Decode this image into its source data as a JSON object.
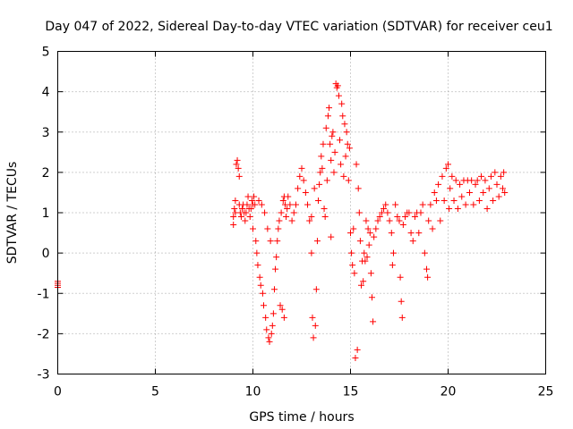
{
  "chart_data": {
    "type": "scatter",
    "title": "Day 047 of 2022, Sidereal Day-to-day VTEC variation (SDTVAR) for receiver ceu1",
    "xlabel": "GPS time / hours",
    "ylabel": "SDTVAR / TECUs",
    "xlim": [
      0,
      25
    ],
    "ylim": [
      -3,
      5
    ],
    "xticks": [
      "0",
      "5",
      "10",
      "15",
      "20",
      "25"
    ],
    "yticks": [
      "-3",
      "-2",
      "-1",
      "0",
      "1",
      "2",
      "3",
      "4",
      "5"
    ],
    "grid": true,
    "marker": "+",
    "series": [
      {
        "color": "#ff0000",
        "points": [
          [
            0.0,
            -0.7
          ],
          [
            0.0,
            -0.75
          ],
          [
            0.0,
            -0.8
          ],
          [
            0.0,
            -0.85
          ],
          [
            9.0,
            0.7
          ],
          [
            9.0,
            0.9
          ],
          [
            9.05,
            1.1
          ],
          [
            9.1,
            1.3
          ],
          [
            9.1,
            1.0
          ],
          [
            9.15,
            2.2
          ],
          [
            9.2,
            2.3
          ],
          [
            9.25,
            2.1
          ],
          [
            9.3,
            1.9
          ],
          [
            9.3,
            1.2
          ],
          [
            9.35,
            1.0
          ],
          [
            9.4,
            0.9
          ],
          [
            9.45,
            1.1
          ],
          [
            9.5,
            1.2
          ],
          [
            9.55,
            1.0
          ],
          [
            9.6,
            0.8
          ],
          [
            9.65,
            1.0
          ],
          [
            9.7,
            1.2
          ],
          [
            9.75,
            1.4
          ],
          [
            9.8,
            1.1
          ],
          [
            9.85,
            0.9
          ],
          [
            9.9,
            1.1
          ],
          [
            9.95,
            1.3
          ],
          [
            10.0,
            1.2
          ],
          [
            10.0,
            0.6
          ],
          [
            10.05,
            1.4
          ],
          [
            10.1,
            1.2
          ],
          [
            10.15,
            0.3
          ],
          [
            10.2,
            0.0
          ],
          [
            10.25,
            -0.3
          ],
          [
            10.3,
            1.3
          ],
          [
            10.35,
            -0.6
          ],
          [
            10.4,
            -0.8
          ],
          [
            10.45,
            1.2
          ],
          [
            10.5,
            -1.0
          ],
          [
            10.55,
            -1.3
          ],
          [
            10.6,
            1.0
          ],
          [
            10.65,
            -1.6
          ],
          [
            10.7,
            -1.9
          ],
          [
            10.75,
            0.6
          ],
          [
            10.8,
            -2.1
          ],
          [
            10.85,
            -2.2
          ],
          [
            10.9,
            0.3
          ],
          [
            10.95,
            -2.0
          ],
          [
            11.0,
            -1.8
          ],
          [
            11.05,
            -1.5
          ],
          [
            11.1,
            -0.9
          ],
          [
            11.15,
            -0.4
          ],
          [
            11.2,
            -0.1
          ],
          [
            11.25,
            0.3
          ],
          [
            11.3,
            0.6
          ],
          [
            11.35,
            0.8
          ],
          [
            11.4,
            -1.3
          ],
          [
            11.45,
            1.0
          ],
          [
            11.5,
            -1.4
          ],
          [
            11.55,
            1.3
          ],
          [
            11.6,
            1.4
          ],
          [
            11.6,
            -1.6
          ],
          [
            11.65,
            1.2
          ],
          [
            11.7,
            0.9
          ],
          [
            11.75,
            1.1
          ],
          [
            11.8,
            1.4
          ],
          [
            11.9,
            1.2
          ],
          [
            12.0,
            0.8
          ],
          [
            12.1,
            1.0
          ],
          [
            12.2,
            1.2
          ],
          [
            12.3,
            1.6
          ],
          [
            12.4,
            1.9
          ],
          [
            12.5,
            2.1
          ],
          [
            12.6,
            1.8
          ],
          [
            12.7,
            1.5
          ],
          [
            12.8,
            1.2
          ],
          [
            12.9,
            0.8
          ],
          [
            13.0,
            0.0
          ],
          [
            13.0,
            0.9
          ],
          [
            13.05,
            -1.6
          ],
          [
            13.1,
            -2.1
          ],
          [
            13.15,
            1.6
          ],
          [
            13.2,
            -1.8
          ],
          [
            13.25,
            -0.9
          ],
          [
            13.3,
            0.3
          ],
          [
            13.35,
            1.3
          ],
          [
            13.4,
            1.7
          ],
          [
            13.45,
            2.0
          ],
          [
            13.5,
            2.4
          ],
          [
            13.55,
            2.1
          ],
          [
            13.6,
            2.7
          ],
          [
            13.65,
            1.1
          ],
          [
            13.7,
            0.9
          ],
          [
            13.75,
            3.1
          ],
          [
            13.8,
            1.8
          ],
          [
            13.85,
            3.4
          ],
          [
            13.9,
            3.6
          ],
          [
            13.95,
            2.7
          ],
          [
            14.0,
            2.3
          ],
          [
            14.0,
            0.4
          ],
          [
            14.05,
            2.9
          ],
          [
            14.1,
            3.0
          ],
          [
            14.15,
            2.0
          ],
          [
            14.2,
            2.5
          ],
          [
            14.25,
            4.2
          ],
          [
            14.3,
            4.1
          ],
          [
            14.35,
            4.15
          ],
          [
            14.4,
            3.9
          ],
          [
            14.45,
            2.8
          ],
          [
            14.5,
            2.2
          ],
          [
            14.55,
            3.7
          ],
          [
            14.6,
            3.4
          ],
          [
            14.65,
            1.9
          ],
          [
            14.7,
            3.2
          ],
          [
            14.75,
            2.4
          ],
          [
            14.8,
            3.0
          ],
          [
            14.85,
            2.7
          ],
          [
            14.9,
            1.8
          ],
          [
            14.95,
            2.6
          ],
          [
            15.0,
            0.5
          ],
          [
            15.05,
            0.0
          ],
          [
            15.1,
            -0.3
          ],
          [
            15.15,
            0.6
          ],
          [
            15.2,
            -0.5
          ],
          [
            15.25,
            -2.6
          ],
          [
            15.3,
            2.2
          ],
          [
            15.35,
            -2.4
          ],
          [
            15.4,
            1.6
          ],
          [
            15.45,
            1.0
          ],
          [
            15.5,
            0.3
          ],
          [
            15.55,
            -0.8
          ],
          [
            15.6,
            -0.2
          ],
          [
            15.65,
            -0.7
          ],
          [
            15.7,
            0.0
          ],
          [
            15.75,
            -0.2
          ],
          [
            15.8,
            0.8
          ],
          [
            15.85,
            -0.1
          ],
          [
            15.9,
            0.6
          ],
          [
            15.95,
            0.2
          ],
          [
            16.0,
            0.5
          ],
          [
            16.05,
            -0.5
          ],
          [
            16.1,
            -1.1
          ],
          [
            16.15,
            -1.7
          ],
          [
            16.2,
            0.4
          ],
          [
            16.3,
            0.6
          ],
          [
            16.4,
            0.8
          ],
          [
            16.5,
            0.9
          ],
          [
            16.6,
            1.0
          ],
          [
            16.7,
            1.1
          ],
          [
            16.8,
            1.2
          ],
          [
            16.9,
            1.0
          ],
          [
            17.0,
            0.8
          ],
          [
            17.1,
            0.5
          ],
          [
            17.15,
            -0.3
          ],
          [
            17.2,
            0.0
          ],
          [
            17.3,
            1.2
          ],
          [
            17.4,
            0.9
          ],
          [
            17.5,
            0.8
          ],
          [
            17.55,
            -0.6
          ],
          [
            17.6,
            -1.2
          ],
          [
            17.65,
            -1.6
          ],
          [
            17.7,
            0.7
          ],
          [
            17.8,
            0.9
          ],
          [
            17.9,
            1.0
          ],
          [
            18.0,
            1.0
          ],
          [
            18.1,
            0.5
          ],
          [
            18.2,
            0.3
          ],
          [
            18.3,
            0.9
          ],
          [
            18.4,
            1.0
          ],
          [
            18.5,
            0.5
          ],
          [
            18.6,
            1.0
          ],
          [
            18.7,
            1.2
          ],
          [
            18.8,
            0.0
          ],
          [
            18.9,
            -0.4
          ],
          [
            18.95,
            -0.6
          ],
          [
            19.0,
            0.8
          ],
          [
            19.1,
            1.2
          ],
          [
            19.2,
            0.6
          ],
          [
            19.3,
            1.5
          ],
          [
            19.4,
            1.3
          ],
          [
            19.5,
            1.7
          ],
          [
            19.6,
            0.8
          ],
          [
            19.7,
            1.9
          ],
          [
            19.8,
            1.3
          ],
          [
            19.9,
            2.1
          ],
          [
            20.0,
            2.2
          ],
          [
            20.05,
            1.1
          ],
          [
            20.1,
            1.6
          ],
          [
            20.2,
            1.9
          ],
          [
            20.3,
            1.3
          ],
          [
            20.4,
            1.8
          ],
          [
            20.5,
            1.1
          ],
          [
            20.6,
            1.7
          ],
          [
            20.7,
            1.4
          ],
          [
            20.8,
            1.8
          ],
          [
            20.9,
            1.2
          ],
          [
            21.0,
            1.8
          ],
          [
            21.1,
            1.5
          ],
          [
            21.2,
            1.8
          ],
          [
            21.3,
            1.2
          ],
          [
            21.4,
            1.7
          ],
          [
            21.5,
            1.8
          ],
          [
            21.6,
            1.3
          ],
          [
            21.7,
            1.9
          ],
          [
            21.8,
            1.5
          ],
          [
            21.9,
            1.8
          ],
          [
            22.0,
            1.1
          ],
          [
            22.1,
            1.6
          ],
          [
            22.2,
            1.9
          ],
          [
            22.3,
            1.3
          ],
          [
            22.4,
            2.0
          ],
          [
            22.5,
            1.7
          ],
          [
            22.6,
            1.4
          ],
          [
            22.7,
            1.9
          ],
          [
            22.8,
            1.6
          ],
          [
            22.85,
            2.0
          ],
          [
            22.9,
            1.5
          ]
        ]
      }
    ]
  }
}
